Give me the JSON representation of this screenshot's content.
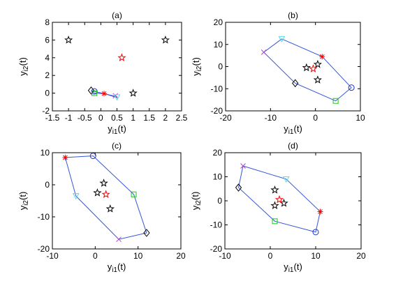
{
  "colors": {
    "hull": "#3355dd",
    "black": "#000000",
    "red": "#ff0000",
    "green": "#11cc11",
    "cyan": "#55dddd",
    "magenta": "#aa44cc",
    "blue": "#2233cc"
  },
  "chart_data": [
    {
      "type": "scatter",
      "title": "(a)",
      "xlabel": {
        "base": "y",
        "sub": "i1",
        "suffix": "(t)"
      },
      "ylabel": {
        "base": "y",
        "sub": "i2",
        "suffix": "(t)"
      },
      "xlim": [
        -1.5,
        2.5
      ],
      "ylim": [
        -2,
        8
      ],
      "xticks": [
        -1.5,
        -1,
        -0.5,
        0,
        0.5,
        1,
        1.5,
        2,
        2.5
      ],
      "yticks": [
        -2,
        0,
        2,
        4,
        6,
        8
      ],
      "grid": false,
      "stars": [
        [
          -1,
          6
        ],
        [
          2,
          6
        ],
        [
          1,
          0
        ]
      ],
      "red_star": [
        0.65,
        4
      ],
      "hull": [
        [
          -0.3,
          0.3
        ],
        [
          -0.2,
          0.2
        ],
        [
          0.5,
          -0.4
        ],
        [
          0.5,
          -0.5
        ],
        [
          0.1,
          -0.05
        ],
        [
          -0.2,
          0
        ],
        [
          -0.3,
          0.3
        ]
      ],
      "markers": [
        {
          "shape": "diamond",
          "color": "black",
          "x": -0.3,
          "y": 0.3
        },
        {
          "shape": "circle",
          "color": "blue",
          "x": -0.2,
          "y": 0.2
        },
        {
          "shape": "x",
          "color": "magenta",
          "x": 0.45,
          "y": -0.3
        },
        {
          "shape": "triangle",
          "color": "cyan",
          "x": 0.5,
          "y": -0.45
        },
        {
          "shape": "asterisk",
          "color": "red",
          "x": 0.1,
          "y": -0.05
        },
        {
          "shape": "square",
          "color": "green",
          "x": -0.2,
          "y": 0
        }
      ]
    },
    {
      "type": "scatter",
      "title": "(b)",
      "xlabel": {
        "base": "y",
        "sub": "i1",
        "suffix": "(t)"
      },
      "ylabel": {
        "base": "y",
        "sub": "i2",
        "suffix": "(t)"
      },
      "xlim": [
        -20,
        10
      ],
      "ylim": [
        -20,
        20
      ],
      "xticks": [
        -20,
        -10,
        0,
        10
      ],
      "yticks": [
        -20,
        -10,
        0,
        10,
        20
      ],
      "grid": false,
      "stars": [
        [
          -2,
          -0.5
        ],
        [
          0.5,
          1
        ],
        [
          0.5,
          -6
        ]
      ],
      "red_star": [
        -0.5,
        -1
      ],
      "hull": [
        [
          -7.5,
          12.5
        ],
        [
          1.5,
          4.5
        ],
        [
          8,
          -9.5
        ],
        [
          4.5,
          -15.5
        ],
        [
          -4.5,
          -7.5
        ],
        [
          -11.5,
          6.5
        ],
        [
          -7.5,
          12.5
        ]
      ],
      "markers": [
        {
          "shape": "triangle",
          "color": "cyan",
          "x": -7.5,
          "y": 12.5
        },
        {
          "shape": "asterisk",
          "color": "red",
          "x": 1.5,
          "y": 4.5
        },
        {
          "shape": "circle",
          "color": "blue",
          "x": 8,
          "y": -9.5
        },
        {
          "shape": "square",
          "color": "green",
          "x": 4.5,
          "y": -15.5
        },
        {
          "shape": "diamond",
          "color": "black",
          "x": -4.5,
          "y": -7.5
        },
        {
          "shape": "x",
          "color": "magenta",
          "x": -11.5,
          "y": 6.5
        }
      ]
    },
    {
      "type": "scatter",
      "title": "(c)",
      "xlabel": {
        "base": "y",
        "sub": "i1",
        "suffix": "(t)"
      },
      "ylabel": {
        "base": "y",
        "sub": "i2",
        "suffix": "(t)"
      },
      "xlim": [
        -10,
        20
      ],
      "ylim": [
        -20,
        10
      ],
      "xticks": [
        -10,
        0,
        10,
        20
      ],
      "yticks": [
        -20,
        -10,
        0,
        10
      ],
      "grid": false,
      "stars": [
        [
          2,
          0.5
        ],
        [
          0.5,
          -2.5
        ],
        [
          3.5,
          -7.5
        ]
      ],
      "red_star": [
        2.5,
        -3
      ],
      "hull": [
        [
          -7,
          8.5
        ],
        [
          -0.5,
          9
        ],
        [
          9,
          -3
        ],
        [
          12,
          -15
        ],
        [
          5.5,
          -17
        ],
        [
          -4.5,
          -3.5
        ],
        [
          -7,
          8.5
        ]
      ],
      "markers": [
        {
          "shape": "asterisk",
          "color": "red",
          "x": -7,
          "y": 8.5
        },
        {
          "shape": "circle",
          "color": "blue",
          "x": -0.5,
          "y": 9
        },
        {
          "shape": "square",
          "color": "green",
          "x": 9,
          "y": -3
        },
        {
          "shape": "diamond",
          "color": "black",
          "x": 12,
          "y": -15
        },
        {
          "shape": "x",
          "color": "magenta",
          "x": 5.5,
          "y": -17
        },
        {
          "shape": "triangle",
          "color": "cyan",
          "x": -4.5,
          "y": -3.5
        }
      ]
    },
    {
      "type": "scatter",
      "title": "(d)",
      "xlabel": {
        "base": "y",
        "sub": "i1",
        "suffix": "(t)"
      },
      "ylabel": {
        "base": "y",
        "sub": "i2",
        "suffix": "(t)"
      },
      "xlim": [
        -10,
        20
      ],
      "ylim": [
        -20,
        20
      ],
      "xticks": [
        -10,
        0,
        10,
        20
      ],
      "yticks": [
        -20,
        -10,
        0,
        10,
        20
      ],
      "grid": false,
      "stars": [
        [
          1,
          4.5
        ],
        [
          1,
          -2
        ],
        [
          3,
          -1
        ]
      ],
      "red_star": [
        2,
        0.5
      ],
      "hull": [
        [
          -6,
          14.5
        ],
        [
          3.5,
          9
        ],
        [
          11,
          -4.5
        ],
        [
          10,
          -13
        ],
        [
          1,
          -8.5
        ],
        [
          -7,
          5.5
        ],
        [
          -6,
          14.5
        ]
      ],
      "markers": [
        {
          "shape": "x",
          "color": "magenta",
          "x": -6,
          "y": 14.5
        },
        {
          "shape": "triangle",
          "color": "cyan",
          "x": 3.5,
          "y": 9
        },
        {
          "shape": "asterisk",
          "color": "red",
          "x": 11,
          "y": -4.5
        },
        {
          "shape": "circle",
          "color": "blue",
          "x": 10,
          "y": -13
        },
        {
          "shape": "square",
          "color": "green",
          "x": 1,
          "y": -8.5
        },
        {
          "shape": "diamond",
          "color": "black",
          "x": -7,
          "y": 5.5
        }
      ]
    }
  ]
}
